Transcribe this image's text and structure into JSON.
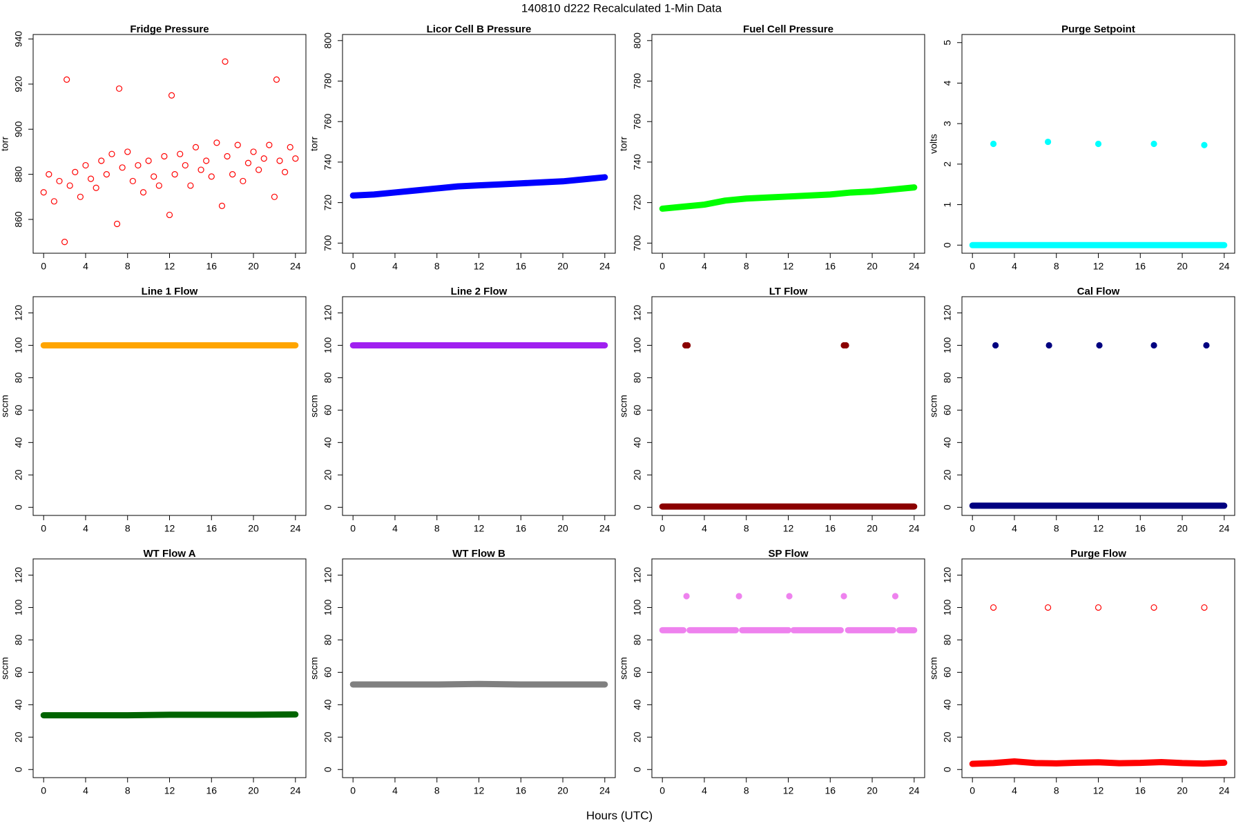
{
  "title": "140810   d222   Recalculated 1-Min Data",
  "xlabel": "Hours (UTC)",
  "chart_data": [
    {
      "type": "scatter",
      "title": "Fridge Pressure",
      "ylabel": "torr",
      "xlim": [
        -1,
        25
      ],
      "xticks": [
        0,
        4,
        8,
        12,
        16,
        20,
        24
      ],
      "ylim": [
        845,
        942
      ],
      "yticks": [
        860,
        880,
        900,
        920,
        940
      ],
      "series": [
        {
          "color": "#ff0000",
          "marker": "open",
          "x": [
            0,
            0.5,
            1,
            1.5,
            2,
            2.2,
            2.5,
            3,
            3.5,
            4,
            4.5,
            5,
            5.5,
            6,
            6.5,
            7,
            7.2,
            7.5,
            8,
            8.5,
            9,
            9.5,
            10,
            10.5,
            11,
            11.5,
            12,
            12.2,
            12.5,
            13,
            13.5,
            14,
            14.5,
            15,
            15.5,
            16,
            16.5,
            17,
            17.3,
            17.5,
            18,
            18.5,
            19,
            19.5,
            20,
            20.5,
            21,
            21.5,
            22,
            22.2,
            22.5,
            23,
            23.5,
            24
          ],
          "values": [
            872,
            880,
            868,
            877,
            850,
            922,
            875,
            881,
            870,
            884,
            878,
            874,
            886,
            880,
            889,
            858,
            918,
            883,
            890,
            877,
            884,
            872,
            886,
            879,
            875,
            888,
            862,
            915,
            880,
            889,
            884,
            875,
            892,
            882,
            886,
            879,
            894,
            866,
            930,
            888,
            880,
            893,
            877,
            885,
            890,
            882,
            887,
            893,
            870,
            922,
            886,
            881,
            892,
            887
          ]
        }
      ]
    },
    {
      "type": "scatter",
      "title": "Licor Cell B Pressure",
      "ylabel": "torr",
      "xlim": [
        -1,
        25
      ],
      "xticks": [
        0,
        4,
        8,
        12,
        16,
        20,
        24
      ],
      "ylim": [
        695,
        803
      ],
      "yticks": [
        700,
        720,
        740,
        760,
        780,
        800
      ],
      "series": [
        {
          "color": "#0000ff",
          "marker": "band",
          "x": [
            0,
            2,
            4,
            6,
            8,
            10,
            12,
            14,
            16,
            18,
            20,
            22,
            24
          ],
          "values": [
            723.5,
            724,
            725,
            726,
            727,
            728,
            728.5,
            729,
            729.5,
            730,
            730.5,
            731.5,
            732.5
          ]
        }
      ]
    },
    {
      "type": "scatter",
      "title": "Fuel Cell Pressure",
      "ylabel": "torr",
      "xlim": [
        -1,
        25
      ],
      "xticks": [
        0,
        4,
        8,
        12,
        16,
        20,
        24
      ],
      "ylim": [
        695,
        803
      ],
      "yticks": [
        700,
        720,
        740,
        760,
        780,
        800
      ],
      "series": [
        {
          "color": "#00ff00",
          "marker": "band",
          "x": [
            0,
            2,
            4,
            6,
            8,
            10,
            12,
            14,
            16,
            18,
            20,
            22,
            24
          ],
          "values": [
            717,
            718,
            719,
            721,
            722,
            722.5,
            723,
            723.5,
            724,
            725,
            725.5,
            726.5,
            727.5
          ]
        }
      ]
    },
    {
      "type": "scatter",
      "title": "Purge Setpoint",
      "ylabel": "volts",
      "xlim": [
        -1,
        25
      ],
      "xticks": [
        0,
        4,
        8,
        12,
        16,
        20,
        24
      ],
      "ylim": [
        -0.2,
        5.2
      ],
      "yticks": [
        0,
        1,
        2,
        3,
        4,
        5
      ],
      "series": [
        {
          "color": "#00ffff",
          "marker": "band",
          "x": [
            0,
            4,
            8,
            12,
            16,
            20,
            24
          ],
          "values": [
            0,
            0,
            0,
            0,
            0,
            0,
            0
          ]
        },
        {
          "color": "#00ffff",
          "marker": "filled",
          "x": [
            2,
            7.2,
            12,
            17.3,
            22.1
          ],
          "values": [
            2.5,
            2.55,
            2.5,
            2.5,
            2.47
          ]
        }
      ]
    },
    {
      "type": "scatter",
      "title": "Line 1 Flow",
      "ylabel": "sccm",
      "xlim": [
        -1,
        25
      ],
      "xticks": [
        0,
        4,
        8,
        12,
        16,
        20,
        24
      ],
      "ylim": [
        -5,
        130
      ],
      "yticks": [
        0,
        20,
        40,
        60,
        80,
        100,
        120
      ],
      "series": [
        {
          "color": "#ffa500",
          "marker": "band",
          "x": [
            0,
            4,
            8,
            12,
            16,
            20,
            24
          ],
          "values": [
            100,
            100,
            100,
            100,
            100,
            100,
            100
          ]
        }
      ]
    },
    {
      "type": "scatter",
      "title": "Line 2 Flow",
      "ylabel": "sccm",
      "xlim": [
        -1,
        25
      ],
      "xticks": [
        0,
        4,
        8,
        12,
        16,
        20,
        24
      ],
      "ylim": [
        -5,
        130
      ],
      "yticks": [
        0,
        20,
        40,
        60,
        80,
        100,
        120
      ],
      "series": [
        {
          "color": "#a020f0",
          "marker": "band",
          "x": [
            0,
            4,
            8,
            12,
            16,
            20,
            24
          ],
          "values": [
            100,
            100,
            100,
            100,
            100,
            100,
            100
          ]
        }
      ]
    },
    {
      "type": "scatter",
      "title": "LT Flow",
      "ylabel": "sccm",
      "xlim": [
        -1,
        25
      ],
      "xticks": [
        0,
        4,
        8,
        12,
        16,
        20,
        24
      ],
      "ylim": [
        -5,
        130
      ],
      "yticks": [
        0,
        20,
        40,
        60,
        80,
        100,
        120
      ],
      "series": [
        {
          "color": "#8b0000",
          "marker": "band",
          "x": [
            0,
            4,
            8,
            12,
            16,
            20,
            24
          ],
          "values": [
            0.5,
            0.5,
            0.5,
            0.5,
            0.5,
            0.5,
            0.5
          ]
        },
        {
          "color": "#8b0000",
          "marker": "filled",
          "x": [
            2.2,
            2.4,
            17.3,
            17.5
          ],
          "values": [
            100,
            100,
            100,
            100
          ]
        }
      ]
    },
    {
      "type": "scatter",
      "title": "Cal Flow",
      "ylabel": "sccm",
      "xlim": [
        -1,
        25
      ],
      "xticks": [
        0,
        4,
        8,
        12,
        16,
        20,
        24
      ],
      "ylim": [
        -5,
        130
      ],
      "yticks": [
        0,
        20,
        40,
        60,
        80,
        100,
        120
      ],
      "series": [
        {
          "color": "#000080",
          "marker": "band",
          "x": [
            0,
            4,
            8,
            12,
            16,
            20,
            24
          ],
          "values": [
            1,
            1,
            1,
            1,
            1,
            1,
            1
          ]
        },
        {
          "color": "#000080",
          "marker": "filled",
          "x": [
            2.2,
            7.3,
            12.1,
            17.3,
            22.3
          ],
          "values": [
            100,
            100,
            100,
            100,
            100
          ]
        }
      ]
    },
    {
      "type": "scatter",
      "title": "WT Flow A",
      "ylabel": "sccm",
      "xlim": [
        -1,
        25
      ],
      "xticks": [
        0,
        4,
        8,
        12,
        16,
        20,
        24
      ],
      "ylim": [
        -5,
        130
      ],
      "yticks": [
        0,
        20,
        40,
        60,
        80,
        100,
        120
      ],
      "series": [
        {
          "color": "#006400",
          "marker": "band",
          "x": [
            0,
            4,
            8,
            12,
            16,
            20,
            24
          ],
          "values": [
            33.5,
            33.5,
            33.5,
            33.8,
            33.8,
            33.8,
            34
          ]
        }
      ]
    },
    {
      "type": "scatter",
      "title": "WT Flow B",
      "ylabel": "sccm",
      "xlim": [
        -1,
        25
      ],
      "xticks": [
        0,
        4,
        8,
        12,
        16,
        20,
        24
      ],
      "ylim": [
        -5,
        130
      ],
      "yticks": [
        0,
        20,
        40,
        60,
        80,
        100,
        120
      ],
      "series": [
        {
          "color": "#808080",
          "marker": "band",
          "x": [
            0,
            4,
            8,
            12,
            16,
            20,
            24
          ],
          "values": [
            52.5,
            52.5,
            52.5,
            52.8,
            52.5,
            52.5,
            52.5
          ]
        }
      ]
    },
    {
      "type": "scatter",
      "title": "SP Flow",
      "ylabel": "sccm",
      "xlim": [
        -1,
        25
      ],
      "xticks": [
        0,
        4,
        8,
        12,
        16,
        20,
        24
      ],
      "ylim": [
        -5,
        130
      ],
      "yticks": [
        0,
        20,
        40,
        60,
        80,
        100,
        120
      ],
      "series": [
        {
          "color": "#ee82ee",
          "marker": "band",
          "x": [
            0,
            2,
            2.3,
            2.6,
            7,
            7.3,
            7.6,
            12,
            12.2,
            12.5,
            17,
            17.3,
            17.7,
            22,
            22.3,
            22.6,
            24
          ],
          "values": [
            86,
            86,
            null,
            86,
            86,
            null,
            86,
            86,
            null,
            86,
            86,
            null,
            86,
            86,
            null,
            86,
            86
          ]
        },
        {
          "color": "#ee82ee",
          "marker": "filled",
          "x": [
            2.3,
            7.3,
            12.1,
            17.3,
            22.2
          ],
          "values": [
            107,
            107,
            107,
            107,
            107
          ]
        }
      ]
    },
    {
      "type": "scatter",
      "title": "Purge Flow",
      "ylabel": "sccm",
      "xlim": [
        -1,
        25
      ],
      "xticks": [
        0,
        4,
        8,
        12,
        16,
        20,
        24
      ],
      "ylim": [
        -5,
        130
      ],
      "yticks": [
        0,
        20,
        40,
        60,
        80,
        100,
        120
      ],
      "series": [
        {
          "color": "#ff0000",
          "marker": "band",
          "x": [
            0,
            2,
            4,
            6,
            8,
            10,
            12,
            14,
            16,
            18,
            20,
            22,
            24
          ],
          "values": [
            3.5,
            4,
            5,
            4,
            3.8,
            4.2,
            4.5,
            3.9,
            4.1,
            4.6,
            4,
            3.7,
            4.2
          ]
        },
        {
          "color": "#ff0000",
          "marker": "open",
          "x": [
            2,
            7.2,
            12,
            17.3,
            22.1
          ],
          "values": [
            100,
            100,
            100,
            100,
            100
          ]
        }
      ]
    }
  ]
}
